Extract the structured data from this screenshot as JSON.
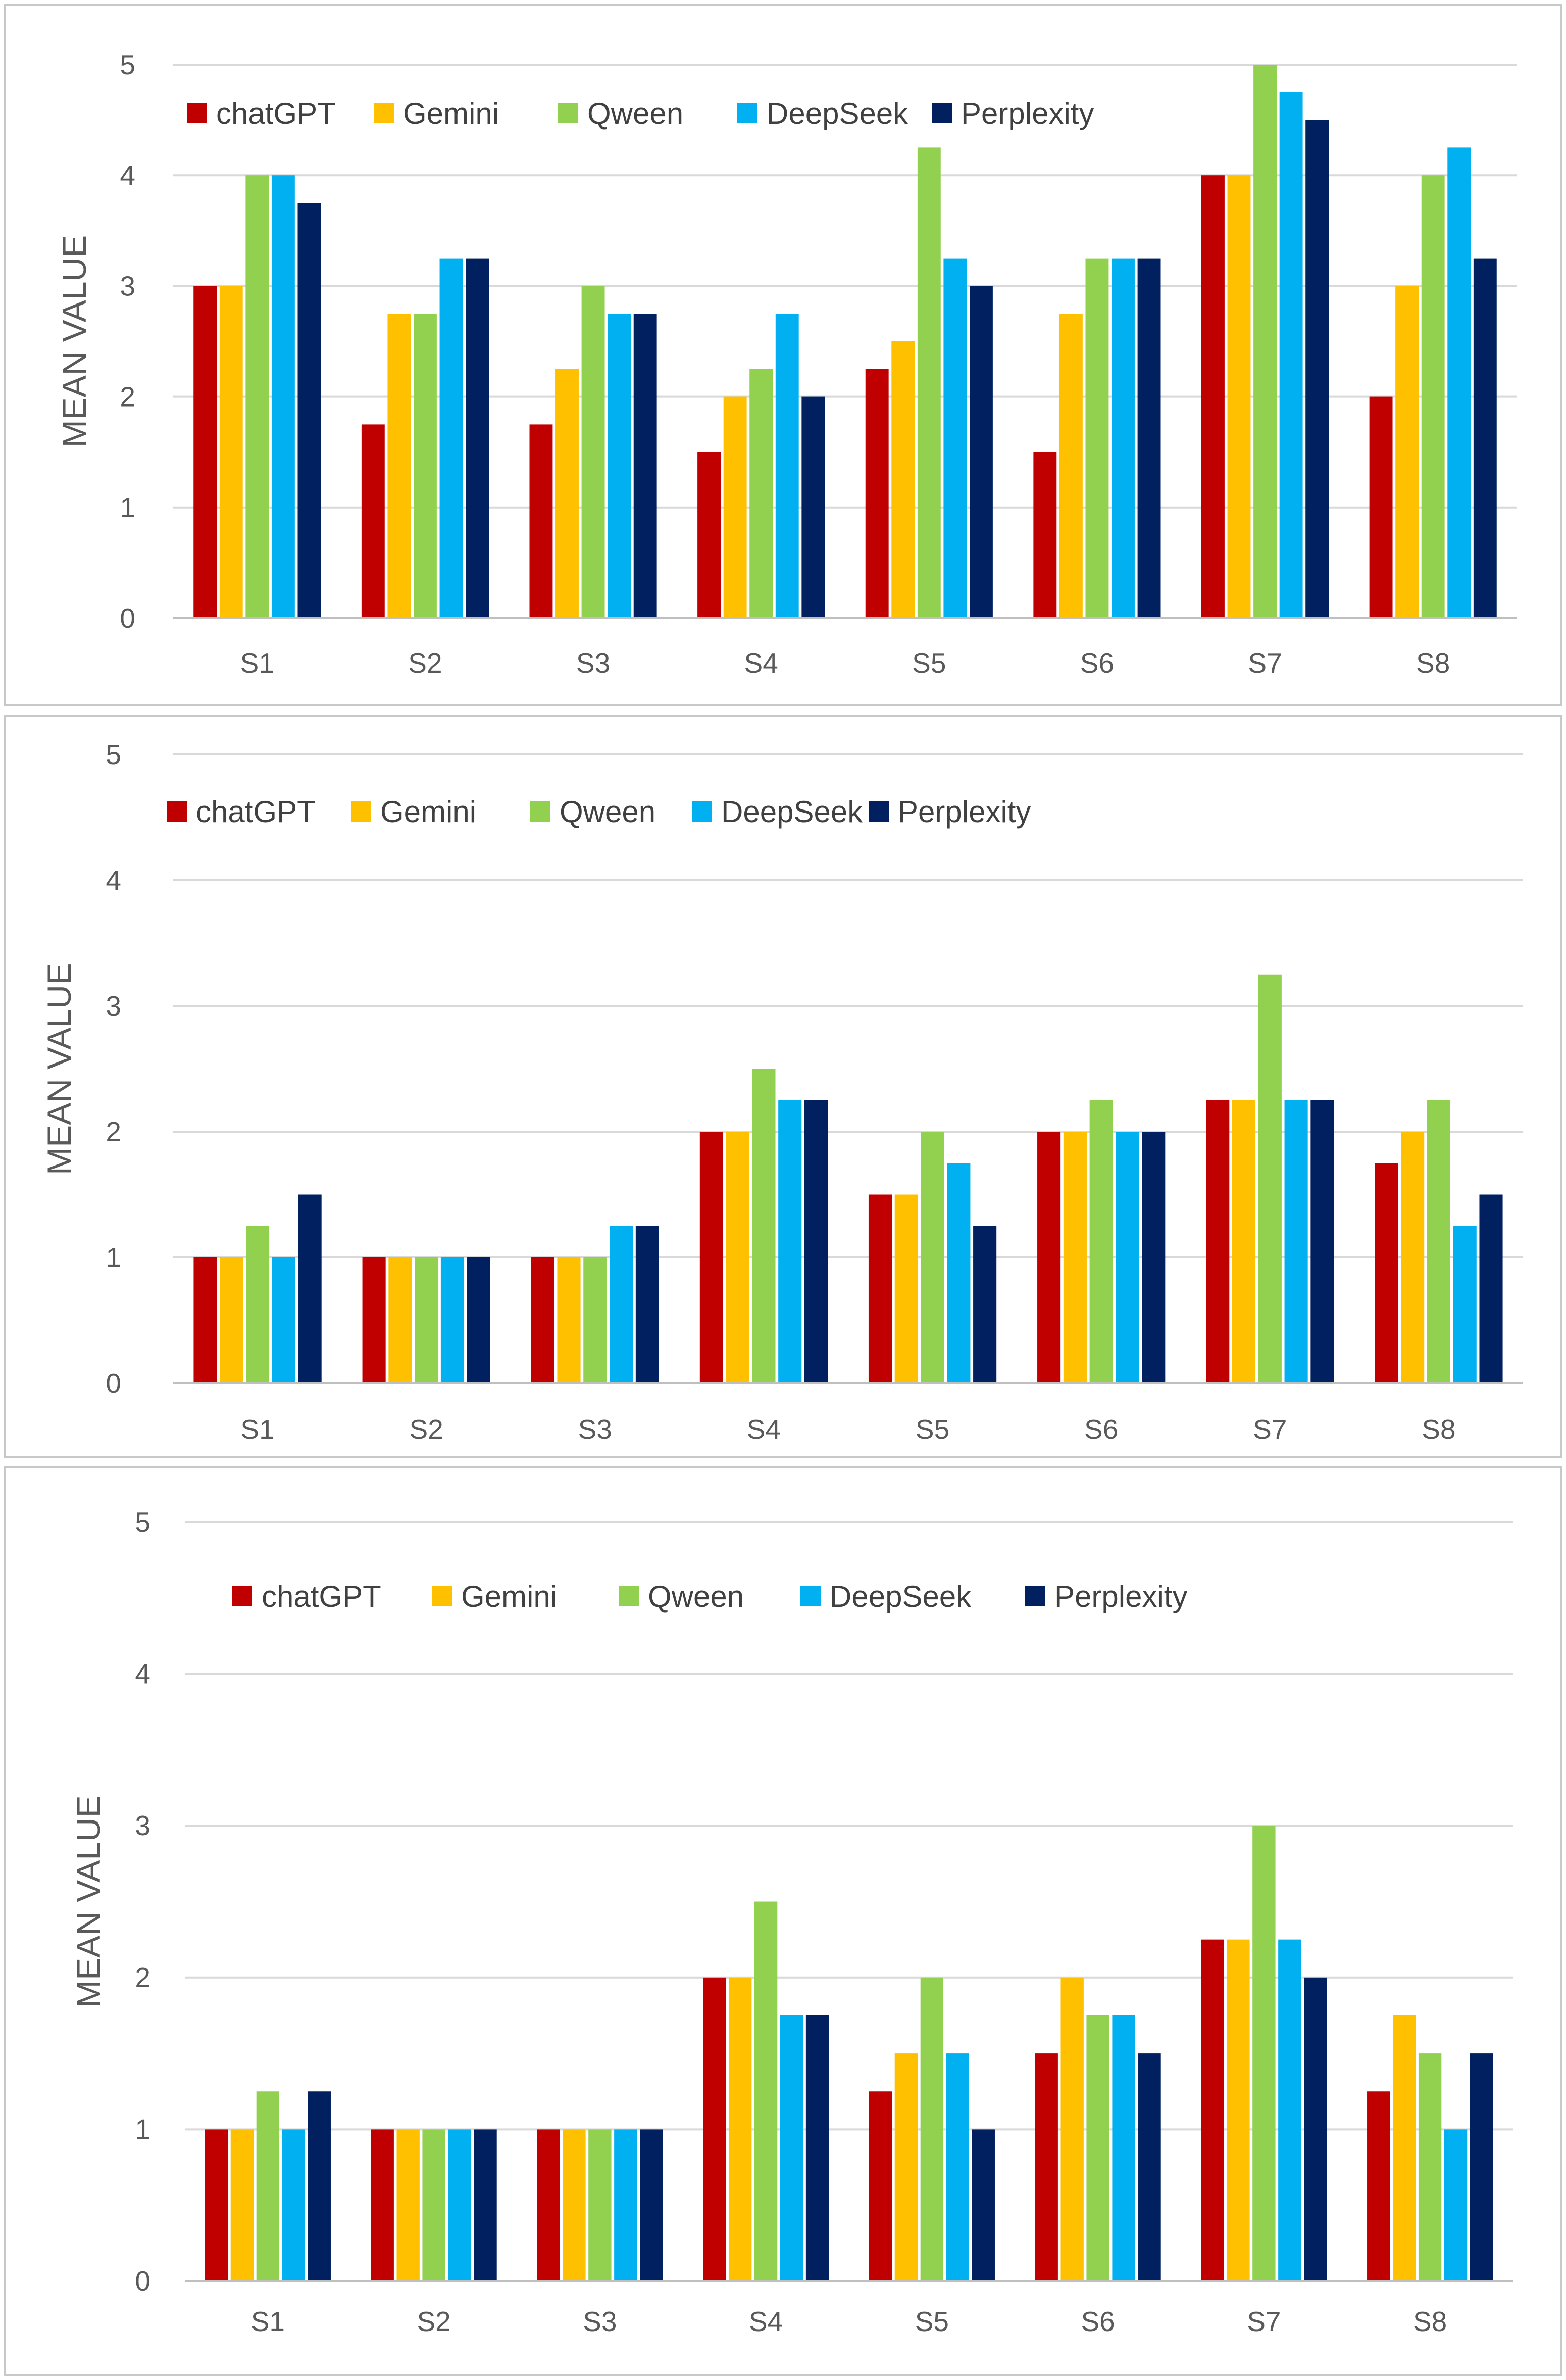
{
  "colors": {
    "chatGPT": "#c00000",
    "Gemini": "#ffc000",
    "Qween": "#92d050",
    "DeepSeek": "#00b0f0",
    "Perplexity": "#002060"
  },
  "chart_data": [
    {
      "type": "bar",
      "title": "",
      "xlabel": "",
      "ylabel": "MEAN VALUE",
      "ylim": [
        0,
        5
      ],
      "yticks": [
        "0",
        "1",
        "2",
        "3",
        "4",
        "5"
      ],
      "legend_position": "top",
      "categories": [
        "S1",
        "S2",
        "S3",
        "S4",
        "S5",
        "S6",
        "S7",
        "S8"
      ],
      "series": [
        {
          "name": "chatGPT",
          "values": [
            3,
            1.75,
            1.75,
            1.5,
            2.25,
            1.5,
            4,
            2
          ]
        },
        {
          "name": "Gemini",
          "values": [
            3,
            2.75,
            2.25,
            2,
            2.5,
            2.75,
            4,
            3
          ]
        },
        {
          "name": "Qween",
          "values": [
            4,
            2.75,
            3,
            2.25,
            4.25,
            3.25,
            5,
            4
          ]
        },
        {
          "name": "DeepSeek",
          "values": [
            4,
            3.25,
            2.75,
            2.75,
            3.25,
            3.25,
            4.75,
            4.25
          ]
        },
        {
          "name": "Perplexity",
          "values": [
            3.75,
            3.25,
            2.75,
            2,
            3,
            3.25,
            4.5,
            3.25
          ]
        }
      ]
    },
    {
      "type": "bar",
      "title": "",
      "xlabel": "",
      "ylabel": "MEAN VALUE",
      "ylim": [
        0,
        5
      ],
      "yticks": [
        "0",
        "1",
        "2",
        "3",
        "4",
        "5"
      ],
      "legend_position": "top",
      "categories": [
        "S1",
        "S2",
        "S3",
        "S4",
        "S5",
        "S6",
        "S7",
        "S8"
      ],
      "series": [
        {
          "name": "chatGPT",
          "values": [
            1,
            1,
            1,
            2,
            1.5,
            2,
            2.25,
            1.75
          ]
        },
        {
          "name": "Gemini",
          "values": [
            1,
            1,
            1,
            2,
            1.5,
            2,
            2.25,
            2
          ]
        },
        {
          "name": "Qween",
          "values": [
            1.25,
            1,
            1,
            2.5,
            2,
            2.25,
            3.25,
            2.25
          ]
        },
        {
          "name": "DeepSeek",
          "values": [
            1,
            1,
            1.25,
            2.25,
            1.75,
            2,
            2.25,
            1.25
          ]
        },
        {
          "name": "Perplexity",
          "values": [
            1.5,
            1,
            1.25,
            2.25,
            1.25,
            2,
            2.25,
            1.5
          ]
        }
      ]
    },
    {
      "type": "bar",
      "title": "",
      "xlabel": "",
      "ylabel": "MEAN VALUE",
      "ylim": [
        0,
        5
      ],
      "yticks": [
        "0",
        "1",
        "2",
        "3",
        "4",
        "5"
      ],
      "legend_position": "top",
      "categories": [
        "S1",
        "S2",
        "S3",
        "S4",
        "S5",
        "S6",
        "S7",
        "S8"
      ],
      "series": [
        {
          "name": "chatGPT",
          "values": [
            1,
            1,
            1,
            2,
            1.25,
            1.5,
            2.25,
            1.25
          ]
        },
        {
          "name": "Gemini",
          "values": [
            1,
            1,
            1,
            2,
            1.5,
            2,
            2.25,
            1.75
          ]
        },
        {
          "name": "Qween",
          "values": [
            1.25,
            1,
            1,
            2.5,
            2,
            1.75,
            3,
            1.5
          ]
        },
        {
          "name": "DeepSeek",
          "values": [
            1,
            1,
            1,
            1.75,
            1.5,
            1.75,
            2.25,
            1
          ]
        },
        {
          "name": "Perplexity",
          "values": [
            1.25,
            1,
            1,
            1.75,
            1,
            1.5,
            2,
            1.5
          ]
        }
      ]
    }
  ]
}
